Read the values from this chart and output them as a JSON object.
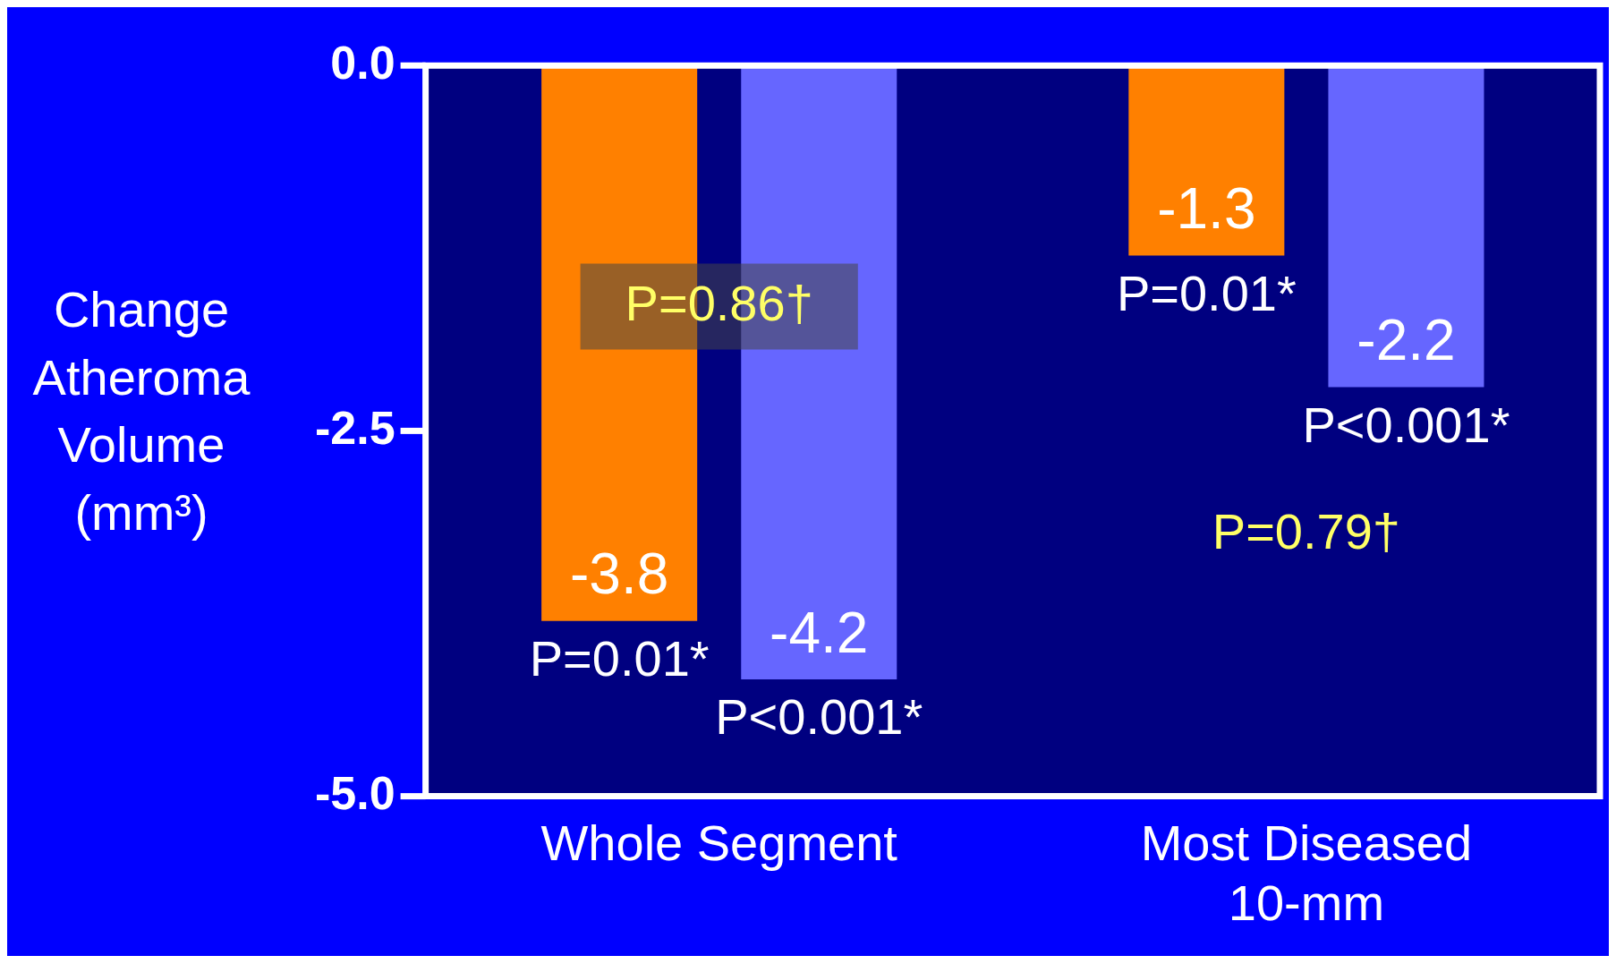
{
  "chart_data": {
    "type": "bar",
    "ylabel": "Change Atheroma Volume (mm³)",
    "categories": [
      "Whole Segment",
      "Most Diseased 10-mm"
    ],
    "series": [
      {
        "color": "#ff8000",
        "values": [
          -3.8,
          -1.3
        ]
      },
      {
        "color": "#6666ff",
        "values": [
          -4.2,
          -2.2
        ]
      }
    ],
    "ylim": [
      -5,
      0
    ],
    "yticks": [
      {
        "value": 0,
        "label": "0.0"
      },
      {
        "value": -2.5,
        "label": "-2.5"
      },
      {
        "value": -5,
        "label": "-5.0"
      }
    ],
    "data_labels": true,
    "legend": false,
    "annotations": [
      "P=0.01*",
      "P<0.001*",
      "P=0.01*",
      "P<0.001*",
      "P=0.86†",
      "P=0.79†"
    ]
  }
}
